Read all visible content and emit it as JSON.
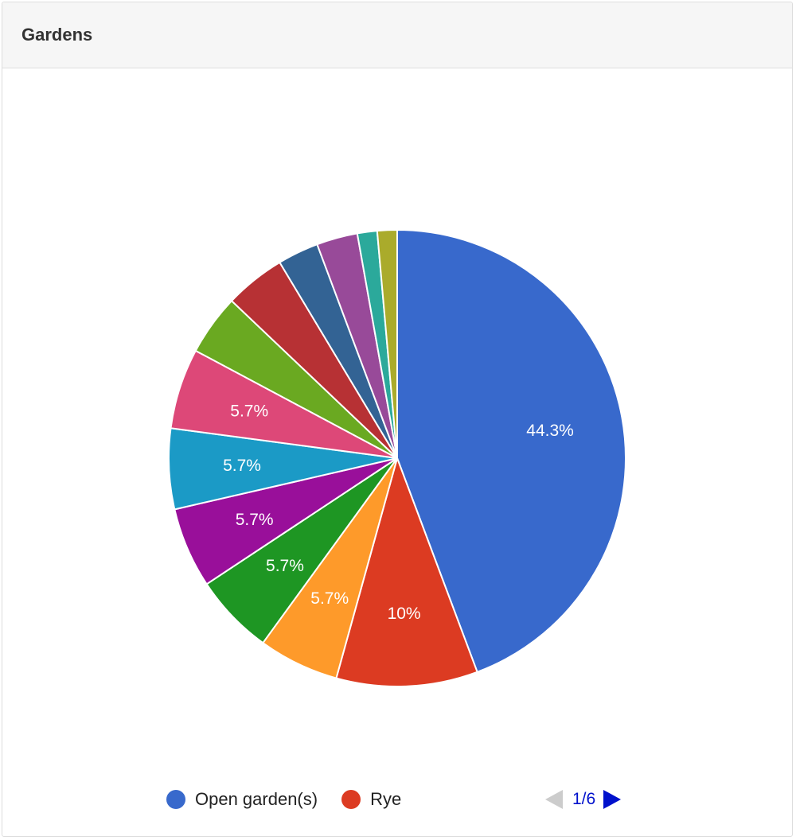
{
  "panel": {
    "title": "Gardens"
  },
  "chart_data": {
    "type": "pie",
    "title": "",
    "start_angle_deg": 0,
    "slices": [
      {
        "name": "Open garden(s)",
        "value": 44.3,
        "label": "44.3%",
        "color": "#3869cc"
      },
      {
        "name": "Rye",
        "value": 10.0,
        "label": "10%",
        "color": "#dc3b22"
      },
      {
        "name": "",
        "value": 5.7,
        "label": "5.7%",
        "color": "#fe9a2a"
      },
      {
        "name": "",
        "value": 5.7,
        "label": "5.7%",
        "color": "#1e9623"
      },
      {
        "name": "",
        "value": 5.7,
        "label": "5.7%",
        "color": "#990f9a"
      },
      {
        "name": "",
        "value": 5.7,
        "label": "5.7%",
        "color": "#1b9ac6"
      },
      {
        "name": "",
        "value": 5.7,
        "label": "5.7%",
        "color": "#dd4878"
      },
      {
        "name": "",
        "value": 4.3,
        "label": "",
        "color": "#6aa921"
      },
      {
        "name": "",
        "value": 4.3,
        "label": "",
        "color": "#b73134"
      },
      {
        "name": "",
        "value": 2.9,
        "label": "",
        "color": "#336394"
      },
      {
        "name": "",
        "value": 2.9,
        "label": "",
        "color": "#984a99"
      },
      {
        "name": "",
        "value": 1.4,
        "label": "",
        "color": "#2ba99b"
      },
      {
        "name": "",
        "value": 1.4,
        "label": "",
        "color": "#aaab2b"
      }
    ],
    "legend": {
      "position": "bottom",
      "items": [
        {
          "label": "Open garden(s)",
          "color": "#3869cc"
        },
        {
          "label": "Rye",
          "color": "#dc3b22"
        }
      ],
      "pager": {
        "text": "1/6",
        "prev_enabled": false,
        "next_enabled": true
      }
    }
  }
}
